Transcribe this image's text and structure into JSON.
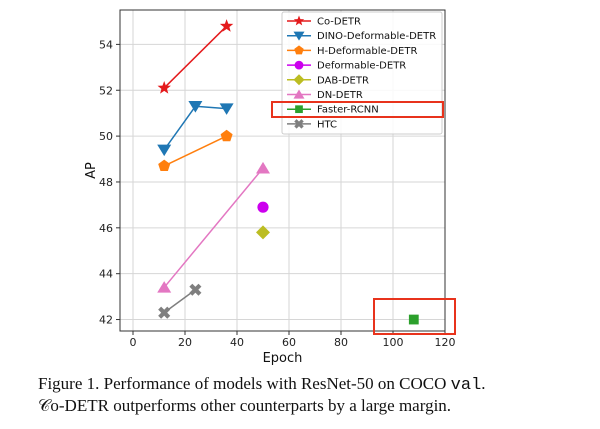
{
  "chart_data": {
    "type": "scatter",
    "xlabel": "Epoch",
    "ylabel": "AP",
    "xlim": [
      -5,
      120
    ],
    "ylim": [
      41.5,
      55.5
    ],
    "xticks": [
      0,
      20,
      40,
      60,
      80,
      100,
      120
    ],
    "yticks": [
      42,
      44,
      46,
      48,
      50,
      52,
      54
    ],
    "grid": true,
    "legend_placement": "top-right",
    "series": [
      {
        "name": "Co-DETR",
        "color": "#e41a1c",
        "marker": "star",
        "x": [
          12,
          36
        ],
        "y": [
          52.1,
          54.8
        ]
      },
      {
        "name": "DINO-Deformable-DETR",
        "color": "#1f77b4",
        "marker": "triangle-down",
        "x": [
          12,
          24,
          36
        ],
        "y": [
          49.4,
          51.3,
          51.2
        ]
      },
      {
        "name": "H-Deformable-DETR",
        "color": "#ff7f0e",
        "marker": "pentagon",
        "x": [
          12,
          36
        ],
        "y": [
          48.7,
          50.0
        ]
      },
      {
        "name": "Deformable-DETR",
        "color": "#cc00ee",
        "marker": "circle",
        "x": [
          50
        ],
        "y": [
          46.9
        ]
      },
      {
        "name": "DAB-DETR",
        "color": "#bcbd22",
        "marker": "diamond",
        "x": [
          50
        ],
        "y": [
          45.8
        ]
      },
      {
        "name": "DN-DETR",
        "color": "#e377c2",
        "marker": "triangle-up",
        "x": [
          12,
          50
        ],
        "y": [
          43.4,
          48.6
        ]
      },
      {
        "name": "Faster-RCNN",
        "color": "#2ca02c",
        "marker": "square",
        "x": [
          108
        ],
        "y": [
          42.0
        ]
      },
      {
        "name": "HTC",
        "color": "#7f7f7f",
        "marker": "x-filled",
        "x": [
          12,
          24
        ],
        "y": [
          42.3,
          43.3
        ]
      }
    ],
    "highlight_color": "#e8331c",
    "highlights": [
      "Faster-RCNN legend entry",
      "Faster-RCNN point"
    ]
  },
  "caption": {
    "line1_prefix": "Figure 1. Performance of models with ResNet-50 on COCO ",
    "line1_code": "val",
    "line1_suffix": ".",
    "line2": "𝒞o-DETR outperforms other counterparts by a large margin."
  }
}
